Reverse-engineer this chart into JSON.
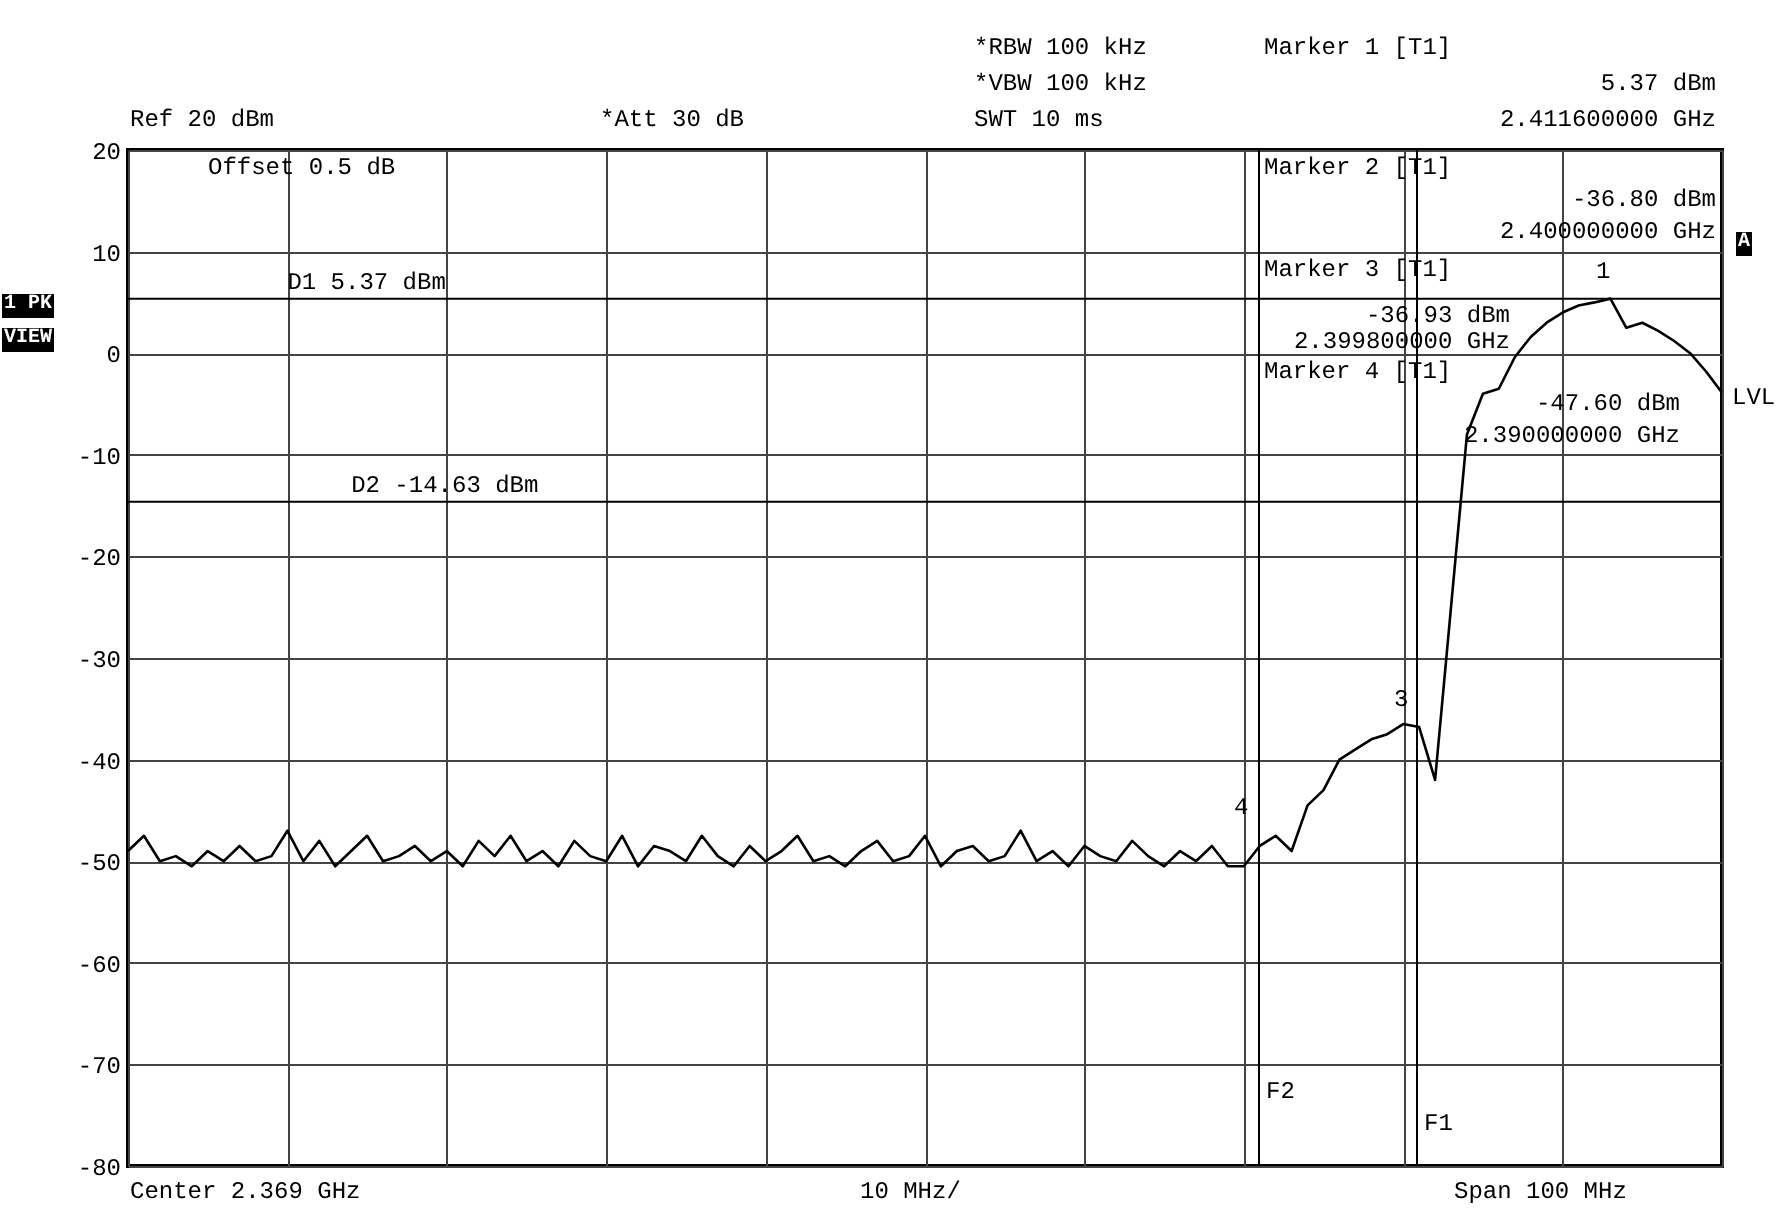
{
  "chart_data": {
    "type": "line",
    "categories": [
      null,
      null,
      null,
      null,
      null,
      null,
      null,
      null,
      null,
      null,
      null,
      null,
      null,
      null,
      null,
      null,
      null,
      null,
      null,
      null,
      null,
      null,
      null,
      null,
      null,
      null,
      null,
      null,
      null,
      null,
      null,
      null,
      null,
      null,
      null,
      null,
      null,
      null,
      null,
      null,
      null,
      null,
      null,
      null,
      null,
      null,
      null,
      null,
      null,
      null,
      null,
      null,
      null,
      null,
      null,
      null,
      null,
      null,
      null,
      null,
      null,
      null,
      null,
      null,
      null,
      null,
      null,
      null,
      null,
      null,
      null,
      null,
      null,
      null,
      null,
      null,
      null,
      null,
      null,
      null,
      null,
      null,
      null,
      null,
      null,
      null,
      null,
      null,
      null,
      null,
      null,
      null,
      null,
      null,
      null,
      null,
      null,
      null,
      null,
      null,
      null
    ],
    "series": [
      {
        "color": "#000000",
        "values": [
          -49,
          -47.5,
          -50,
          -49.5,
          -50.5,
          -49,
          -50,
          -48.5,
          -50,
          -49.5,
          -47,
          -50,
          -48,
          -50.5,
          -49,
          -47.5,
          -50,
          -49.5,
          -48.5,
          -50,
          -49,
          -50.5,
          -48,
          -49.5,
          -47.5,
          -50,
          -49,
          -50.5,
          -48,
          -49.5,
          -50,
          -47.5,
          -50.5,
          -48.5,
          -49,
          -50,
          -47.5,
          -49.5,
          -50.5,
          -48.5,
          -50,
          -49,
          -47.5,
          -50,
          -49.5,
          -50.5,
          -49,
          -48,
          -50,
          -49.5,
          -47.5,
          -50.5,
          -49,
          -48.5,
          -50,
          -49.5,
          -47,
          -50,
          -49,
          -50.5,
          -48.5,
          -49.5,
          -50,
          -48,
          -49.5,
          -50.5,
          -49,
          -50,
          -48.5,
          -50.5,
          -50.5,
          -48.5,
          -47.5,
          -49,
          -44.5,
          -43,
          -40,
          -39,
          -38,
          -37.5,
          -36.5,
          -36.8,
          -42,
          -25,
          -8,
          -4,
          -3.5,
          -0.4,
          1.6,
          3,
          4,
          4.7,
          5,
          5.37,
          2.5,
          3,
          2.2,
          1.2,
          0,
          -1.8,
          -3.9
        ]
      }
    ],
    "ylim": [
      -80,
      20
    ],
    "yticks": [
      20,
      10,
      0,
      -10,
      -20,
      -30,
      -40,
      -50,
      -60,
      -70,
      -80
    ],
    "tick_labels": "y",
    "grid": true,
    "line_style": "solid",
    "ref_lines": [
      {
        "axis": "y",
        "value": 5.37,
        "label": "D1 5.37 dBm"
      },
      {
        "axis": "y",
        "value": -14.63,
        "label": "D2 -14.63 dBm"
      }
    ],
    "annotations": [
      "*RBW 100 kHz",
      "*VBW 100 kHz",
      "SWT 10 ms",
      "Ref 20 dBm",
      "*Att 30 dB",
      "Marker 1 [T1]",
      "5.37 dBm",
      "2.411600000 GHz",
      "Offset 0.5 dB",
      "Marker 2 [T1]",
      "-36.80 dBm",
      "2.400000000 GHz",
      "Marker 3 [T1]",
      "-36.93 dBm",
      "2.399800000 GHz",
      "Marker 4 [T1]",
      "-47.60 dBm",
      "2.390000000 GHz",
      "1 PK",
      "VIEW",
      "A",
      "LVL",
      "Center 2.369 GHz",
      "10 MHz/",
      "Span 100 MHz",
      "F2",
      "F1",
      "1",
      "3",
      "4"
    ]
  }
}
